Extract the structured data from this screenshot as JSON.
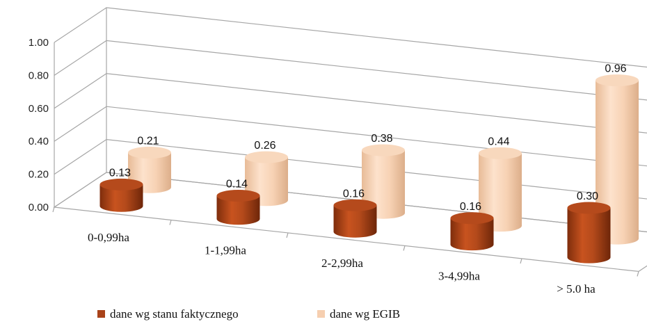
{
  "chart_data": {
    "type": "bar",
    "style": "3d-cylinder",
    "categories": [
      "0-0,99ha",
      "1-1,99ha",
      "2-2,99ha",
      "3-4,99ha",
      "> 5.0 ha"
    ],
    "series": [
      {
        "name": "dane wg stanu faktycznego",
        "values": [
          0.13,
          0.14,
          0.16,
          0.16,
          0.3
        ],
        "color": "#a9431a"
      },
      {
        "name": "dane wg EGIB",
        "values": [
          0.21,
          0.26,
          0.38,
          0.44,
          0.96
        ],
        "color": "#f6cfb0"
      }
    ],
    "value_labels": {
      "series0": [
        "0.13",
        "0.14",
        "0.16",
        "0.16",
        "0.30"
      ],
      "series1": [
        "0.21",
        "0.26",
        "0.38",
        "0.44",
        "0.96"
      ]
    },
    "ylim": [
      0,
      1.0
    ],
    "yticks": [
      0.0,
      0.2,
      0.4,
      0.6,
      0.8,
      1.0
    ],
    "ytick_labels": [
      "0.00",
      "0.20",
      "0.40",
      "0.60",
      "0.80",
      "1.00"
    ],
    "grid": true,
    "legend_position": "bottom",
    "title": "",
    "xlabel": "",
    "ylabel": ""
  }
}
